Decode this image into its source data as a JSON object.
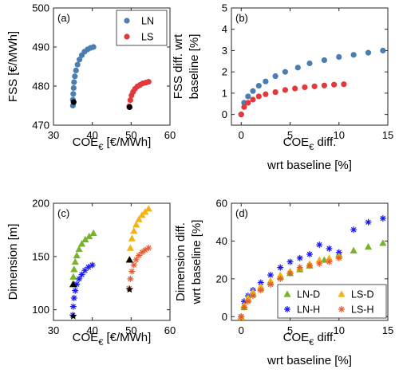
{
  "chart_data": [
    {
      "id": "a",
      "type": "scatter",
      "panel_label": "(a)",
      "xlabel": {
        "main": "COE",
        "sub": "€",
        "rest": " [€/MWh]"
      },
      "ylabel": "FSS [€/MWh]",
      "xlim": [
        30,
        60
      ],
      "ylim": [
        470,
        500
      ],
      "xticks": [
        30,
        40,
        50,
        60
      ],
      "yticks": [
        470,
        480,
        490,
        500
      ],
      "legend": {
        "position": "top-right",
        "entries": [
          {
            "name": "LN",
            "color": "#4a7eb2",
            "marker": "circle"
          },
          {
            "name": "LS",
            "color": "#e2393c",
            "marker": "circle"
          }
        ]
      },
      "series": [
        {
          "name": "LN",
          "color": "#4a7eb2",
          "marker": "circle",
          "x": [
            35.0,
            35.0,
            35.1,
            35.2,
            35.3,
            35.5,
            35.8,
            36.2,
            36.7,
            37.3,
            38.0,
            38.8,
            39.6,
            40.3
          ],
          "y": [
            475.0,
            476.5,
            478.0,
            479.5,
            481.0,
            482.5,
            484.0,
            485.5,
            486.8,
            487.9,
            488.8,
            489.4,
            489.8,
            490.0
          ]
        },
        {
          "name": "LS",
          "color": "#e2393c",
          "marker": "circle",
          "x": [
            49.5,
            49.8,
            50.1,
            50.5,
            51.0,
            51.6,
            52.3,
            53.0,
            53.8,
            54.5
          ],
          "y": [
            474.8,
            476.4,
            477.6,
            478.5,
            479.3,
            479.9,
            480.3,
            480.7,
            480.9,
            481.1
          ]
        },
        {
          "name": "baseline",
          "color": "#000000",
          "marker": "circle",
          "x": [
            35.2,
            49.6
          ],
          "y": [
            475.9,
            474.6
          ]
        }
      ]
    },
    {
      "id": "b",
      "type": "scatter",
      "panel_label": "(b)",
      "xlabel": {
        "main": "COE",
        "sub": "€",
        "rest": " diff.",
        "line2": "wrt baseline [%]"
      },
      "ylabel": {
        "line1": "FSS diff. wrt",
        "line2": "baseline [%]"
      },
      "xlim": [
        -1,
        15
      ],
      "ylim": [
        -0.5,
        5
      ],
      "xticks": [
        0,
        5,
        10,
        15
      ],
      "yticks": [
        0,
        1,
        2,
        3,
        4,
        5
      ],
      "series": [
        {
          "name": "LN",
          "color": "#4a7eb2",
          "marker": "circle",
          "x": [
            0,
            0.3,
            0.7,
            1.2,
            1.8,
            2.5,
            3.5,
            4.5,
            5.8,
            7.0,
            8.5,
            10.0,
            11.5,
            13.0,
            14.5
          ],
          "y": [
            0,
            0.55,
            0.85,
            1.1,
            1.35,
            1.55,
            1.8,
            2.0,
            2.2,
            2.4,
            2.55,
            2.7,
            2.8,
            2.9,
            3.0
          ]
        },
        {
          "name": "LS",
          "color": "#e2393c",
          "marker": "circle",
          "x": [
            0,
            0.3,
            0.7,
            1.2,
            1.8,
            2.5,
            3.5,
            4.5,
            5.5,
            6.5,
            7.5,
            8.5,
            9.5,
            10.5
          ],
          "y": [
            0,
            0.35,
            0.55,
            0.7,
            0.85,
            0.95,
            1.05,
            1.15,
            1.22,
            1.28,
            1.32,
            1.36,
            1.4,
            1.42
          ]
        }
      ]
    },
    {
      "id": "c",
      "type": "scatter",
      "panel_label": "(c)",
      "xlabel": {
        "main": "COE",
        "sub": "€",
        "rest": " [€/MWh]"
      },
      "ylabel": "Dimension [m]",
      "xlim": [
        30,
        60
      ],
      "ylim": [
        90,
        200
      ],
      "xticks": [
        30,
        40,
        50,
        60
      ],
      "yticks": [
        100,
        150,
        200
      ],
      "series": [
        {
          "name": "LN-D",
          "color": "#76b52a",
          "marker": "triangle",
          "x": [
            35.0,
            35.1,
            35.3,
            35.6,
            36.0,
            36.6,
            37.3,
            38.2,
            39.2,
            40.3
          ],
          "y": [
            124,
            131,
            138,
            145,
            151,
            157,
            162,
            166,
            169,
            172
          ]
        },
        {
          "name": "LN-H",
          "color": "#1515f0",
          "marker": "asterisk",
          "x": [
            35.0,
            35.1,
            35.3,
            35.6,
            36.0,
            36.6,
            37.3,
            38.1,
            39.0,
            40.0
          ],
          "y": [
            95,
            103,
            111,
            118,
            124,
            129,
            133,
            137,
            140,
            142
          ]
        },
        {
          "name": "LS-D",
          "color": "#f2b316",
          "marker": "triangle",
          "x": [
            49.5,
            49.8,
            50.2,
            50.7,
            51.3,
            52.0,
            52.8,
            53.6,
            54.5
          ],
          "y": [
            147,
            158,
            167,
            174,
            180,
            185,
            189,
            192,
            195
          ]
        },
        {
          "name": "LS-H",
          "color": "#e65b2e",
          "marker": "asterisk",
          "x": [
            49.5,
            49.8,
            50.2,
            50.7,
            51.3,
            52.0,
            52.8,
            53.6,
            54.5
          ],
          "y": [
            120,
            129,
            136,
            142,
            147,
            151,
            154,
            156,
            158
          ]
        },
        {
          "name": "baseline-D",
          "color": "#000000",
          "marker": "triangle",
          "x": [
            35.1,
            49.6
          ],
          "y": [
            124,
            147
          ]
        },
        {
          "name": "baseline-H",
          "color": "#000000",
          "marker": "star",
          "x": [
            35.1,
            49.6
          ],
          "y": [
            94,
            119
          ]
        }
      ]
    },
    {
      "id": "d",
      "type": "scatter",
      "panel_label": "(d)",
      "xlabel": {
        "main": "COE",
        "sub": "€",
        "rest": " diff.",
        "line2": "wrt baseline [%]"
      },
      "ylabel": {
        "line1": "Dimension diff.",
        "line2": "wrt baseline [%]"
      },
      "xlim": [
        -1,
        15
      ],
      "ylim": [
        -2,
        60
      ],
      "xticks": [
        0,
        5,
        10,
        15
      ],
      "yticks": [
        0,
        20,
        40,
        60
      ],
      "legend": {
        "position": "bottom-right",
        "entries": [
          {
            "name": "LN-D",
            "color": "#76b52a",
            "marker": "triangle"
          },
          {
            "name": "LS-D",
            "color": "#f2b316",
            "marker": "triangle"
          },
          {
            "name": "LN-H",
            "color": "#1515f0",
            "marker": "asterisk"
          },
          {
            "name": "LS-H",
            "color": "#e65b2e",
            "marker": "asterisk"
          }
        ]
      },
      "series": [
        {
          "name": "LN-D",
          "color": "#76b52a",
          "marker": "triangle",
          "x": [
            0,
            0.3,
            0.7,
            1.2,
            2,
            3,
            4,
            5,
            6,
            7,
            8.5,
            10,
            11.5,
            13,
            14.5
          ],
          "y": [
            0,
            5,
            9,
            12,
            15,
            18,
            21,
            23,
            25,
            27,
            30,
            33,
            35,
            37,
            39
          ]
        },
        {
          "name": "LN-H",
          "color": "#1515f0",
          "marker": "asterisk",
          "x": [
            0,
            0.3,
            0.7,
            1.2,
            2,
            3,
            4,
            5,
            6,
            7,
            8,
            9,
            10,
            11.5,
            13,
            14.5
          ],
          "y": [
            0,
            8,
            11,
            14,
            18,
            22,
            26,
            29,
            31,
            33,
            38,
            36,
            34,
            46,
            50,
            52
          ]
        },
        {
          "name": "LS-D",
          "color": "#f2b316",
          "marker": "triangle",
          "x": [
            0,
            0.3,
            0.7,
            1.2,
            2,
            3,
            4,
            5,
            6,
            7,
            8,
            9,
            10
          ],
          "y": [
            0,
            6,
            10,
            13,
            16,
            19,
            22,
            24,
            26,
            28,
            30,
            31,
            32
          ]
        },
        {
          "name": "LS-H",
          "color": "#e65b2e",
          "marker": "asterisk",
          "x": [
            0,
            0.3,
            0.7,
            1.2,
            2,
            3,
            4,
            5,
            6,
            7,
            8,
            9,
            10
          ],
          "y": [
            0,
            5,
            8,
            11,
            14,
            17,
            20,
            23,
            26,
            27,
            28,
            29,
            31
          ]
        }
      ]
    }
  ]
}
